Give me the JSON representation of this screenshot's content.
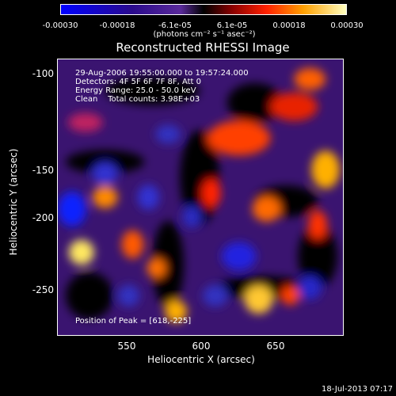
{
  "colorbar": {
    "ticks": [
      "-0.00030",
      "-0.00018",
      "-6.1e-05",
      "6.1e-05",
      "0.00018",
      "0.00030"
    ],
    "unit": "(photons cm⁻² s⁻¹ asec⁻²)"
  },
  "title": "Reconstructed RHESSI Image",
  "info": {
    "time": "29-Aug-2006 19:55:00.000 to 19:57:24.000",
    "detectors": "Detectors: 4F 5F 6F 7F 8F, Att 0",
    "energy": "Energy Range: 25.0 - 50.0 keV",
    "clean": "Clean    Total counts: 3.98E+03"
  },
  "peak": "Position of Peak = [618,-225]",
  "axes": {
    "xlabel": "Heliocentric X (arcsec)",
    "ylabel": "Heliocentric Y (arcsec)",
    "xticks": [
      "550",
      "600",
      "650"
    ],
    "yticks": [
      "-100",
      "-150",
      "-200",
      "-250"
    ]
  },
  "timestamp": "18-Jul-2013 07:17"
}
